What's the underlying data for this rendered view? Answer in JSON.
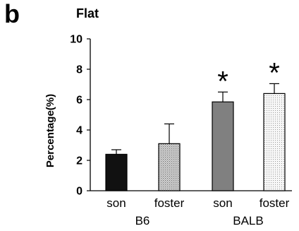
{
  "figure": {
    "panel_letter": "b"
  },
  "chart_data": {
    "type": "bar",
    "title": "Flat",
    "xlabel": "",
    "ylabel": "Percentage(%)",
    "ylim": [
      0,
      10
    ],
    "yticks": [
      "0",
      "2",
      "4",
      "6",
      "8",
      "10"
    ],
    "grid": false,
    "categories": [
      "son",
      "foster",
      "son",
      "foster"
    ],
    "groups": [
      {
        "label": "B6",
        "categories": [
          0,
          1
        ]
      },
      {
        "label": "BALB",
        "categories": [
          2,
          3
        ]
      }
    ],
    "series": [
      {
        "values": [
          2.4,
          3.1,
          5.85,
          6.4
        ],
        "error_upper": [
          2.7,
          4.4,
          6.5,
          7.05
        ],
        "colors": [
          "#111111",
          "#c8c8c8",
          "#808080",
          "#f0f0f0"
        ],
        "patterns": [
          "solid",
          "dots",
          "solid",
          "dots"
        ]
      }
    ],
    "annotations": [
      "",
      "",
      "*",
      "*"
    ]
  }
}
